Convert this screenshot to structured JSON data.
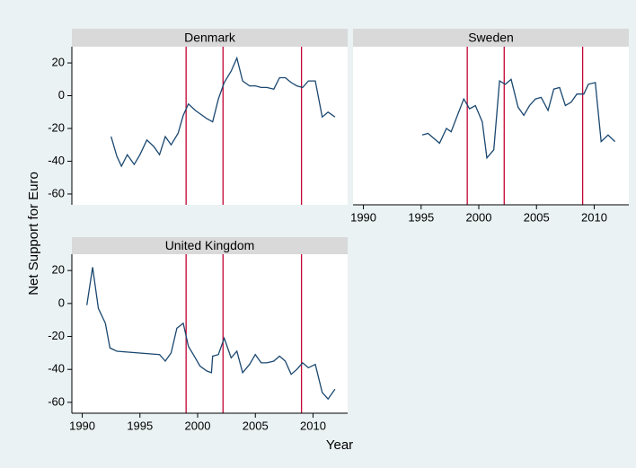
{
  "axis_titles": {
    "y": "Net Support for Euro",
    "x": "Year"
  },
  "chart_data": [
    {
      "type": "line",
      "title": "Denmark",
      "color": "#1a476f",
      "vline_color": "#c10534",
      "xlim": [
        1989.1,
        2013
      ],
      "ylim": [
        -66.6,
        29.9
      ],
      "yticks": [
        20,
        0,
        -20,
        -40,
        -60
      ],
      "vlines": [
        1999,
        2002.2,
        2009
      ],
      "x": [
        1992.5,
        1993,
        1993.4,
        1993.9,
        1994.5,
        1995,
        1995.6,
        1996.2,
        1996.7,
        1997.2,
        1997.7,
        1998.3,
        1998.75,
        1999.2,
        1999.8,
        2000.2,
        2000.8,
        2001.3,
        2001.8,
        2002.3,
        2002.9,
        2003.4,
        2003.9,
        2004.5,
        2005,
        2005.5,
        2006,
        2006.6,
        2007.1,
        2007.6,
        2008.1,
        2008.6,
        2009.1,
        2009.6,
        2010.2,
        2010.8,
        2011.3,
        2011.9
      ],
      "values": [
        -25,
        -37,
        -43,
        -36,
        -42,
        -36,
        -27,
        -31,
        -36,
        -25,
        -30,
        -23,
        -12,
        -5,
        -9,
        -11,
        -14,
        -16,
        -2,
        8,
        15,
        23,
        9,
        6,
        6,
        5,
        5,
        4,
        11,
        11,
        8,
        6,
        5,
        9,
        9,
        -13,
        -10,
        -13
      ]
    },
    {
      "type": "line",
      "title": "Sweden",
      "color": "#1a476f",
      "vline_color": "#c10534",
      "xlim": [
        1989.1,
        2013
      ],
      "ylim": [
        -66.6,
        29.9
      ],
      "xticks": [
        1990,
        1995,
        2000,
        2005,
        2010
      ],
      "vlines": [
        1999,
        2002.2,
        2009
      ],
      "x": [
        1995.1,
        1995.6,
        1996.1,
        1996.6,
        1997.2,
        1997.6,
        1998.2,
        1998.7,
        1999.2,
        1999.7,
        2000.3,
        2000.7,
        2001.3,
        2001.8,
        2002.3,
        2002.8,
        2003.4,
        2003.9,
        2004.4,
        2004.9,
        2005.4,
        2006,
        2006.5,
        2007,
        2007.5,
        2008,
        2008.5,
        2009.1,
        2009.5,
        2010.1,
        2010.6,
        2011.2,
        2011.8
      ],
      "values": [
        -24,
        -23,
        -26,
        -29,
        -20,
        -22,
        -11,
        -2,
        -8,
        -6,
        -16,
        -38,
        -33,
        9,
        7,
        10,
        -7,
        -12,
        -6,
        -2,
        -1,
        -9,
        4,
        5,
        -6,
        -4,
        1,
        1,
        7,
        8,
        -28,
        -24,
        -28
      ]
    },
    {
      "type": "line",
      "title": "United Kingdom",
      "color": "#1a476f",
      "vline_color": "#c10534",
      "xlim": [
        1989.1,
        2013
      ],
      "ylim": [
        -66.6,
        29.9
      ],
      "xticks": [
        1990,
        1995,
        2000,
        2005,
        2010
      ],
      "yticks": [
        20,
        0,
        -20,
        -40,
        -60
      ],
      "vlines": [
        1999,
        2002.2,
        2009
      ],
      "x": [
        1990.4,
        1990.9,
        1991.4,
        1992,
        1992.4,
        1993,
        1996.7,
        1997.2,
        1997.7,
        1998.2,
        1998.75,
        1999.2,
        1999.8,
        2000.2,
        2000.8,
        2001.2,
        2001.3,
        2001.8,
        2002.3,
        2002.9,
        2003.4,
        2003.9,
        2004.5,
        2005,
        2005.5,
        2006,
        2006.6,
        2007.1,
        2007.6,
        2008.1,
        2008.6,
        2009.1,
        2009.6,
        2010.2,
        2010.8,
        2011.3,
        2011.9
      ],
      "values": [
        -1,
        22,
        -3,
        -12,
        -27,
        -29,
        -31,
        -35,
        -30,
        -15,
        -12,
        -26,
        -33,
        -38,
        -41,
        -42,
        -32,
        -31,
        -21,
        -33,
        -29,
        -42,
        -37,
        -31,
        -36,
        -36,
        -35,
        -32,
        -35,
        -43,
        -40,
        -36,
        -39,
        -37,
        -54,
        -58,
        -52
      ]
    }
  ]
}
